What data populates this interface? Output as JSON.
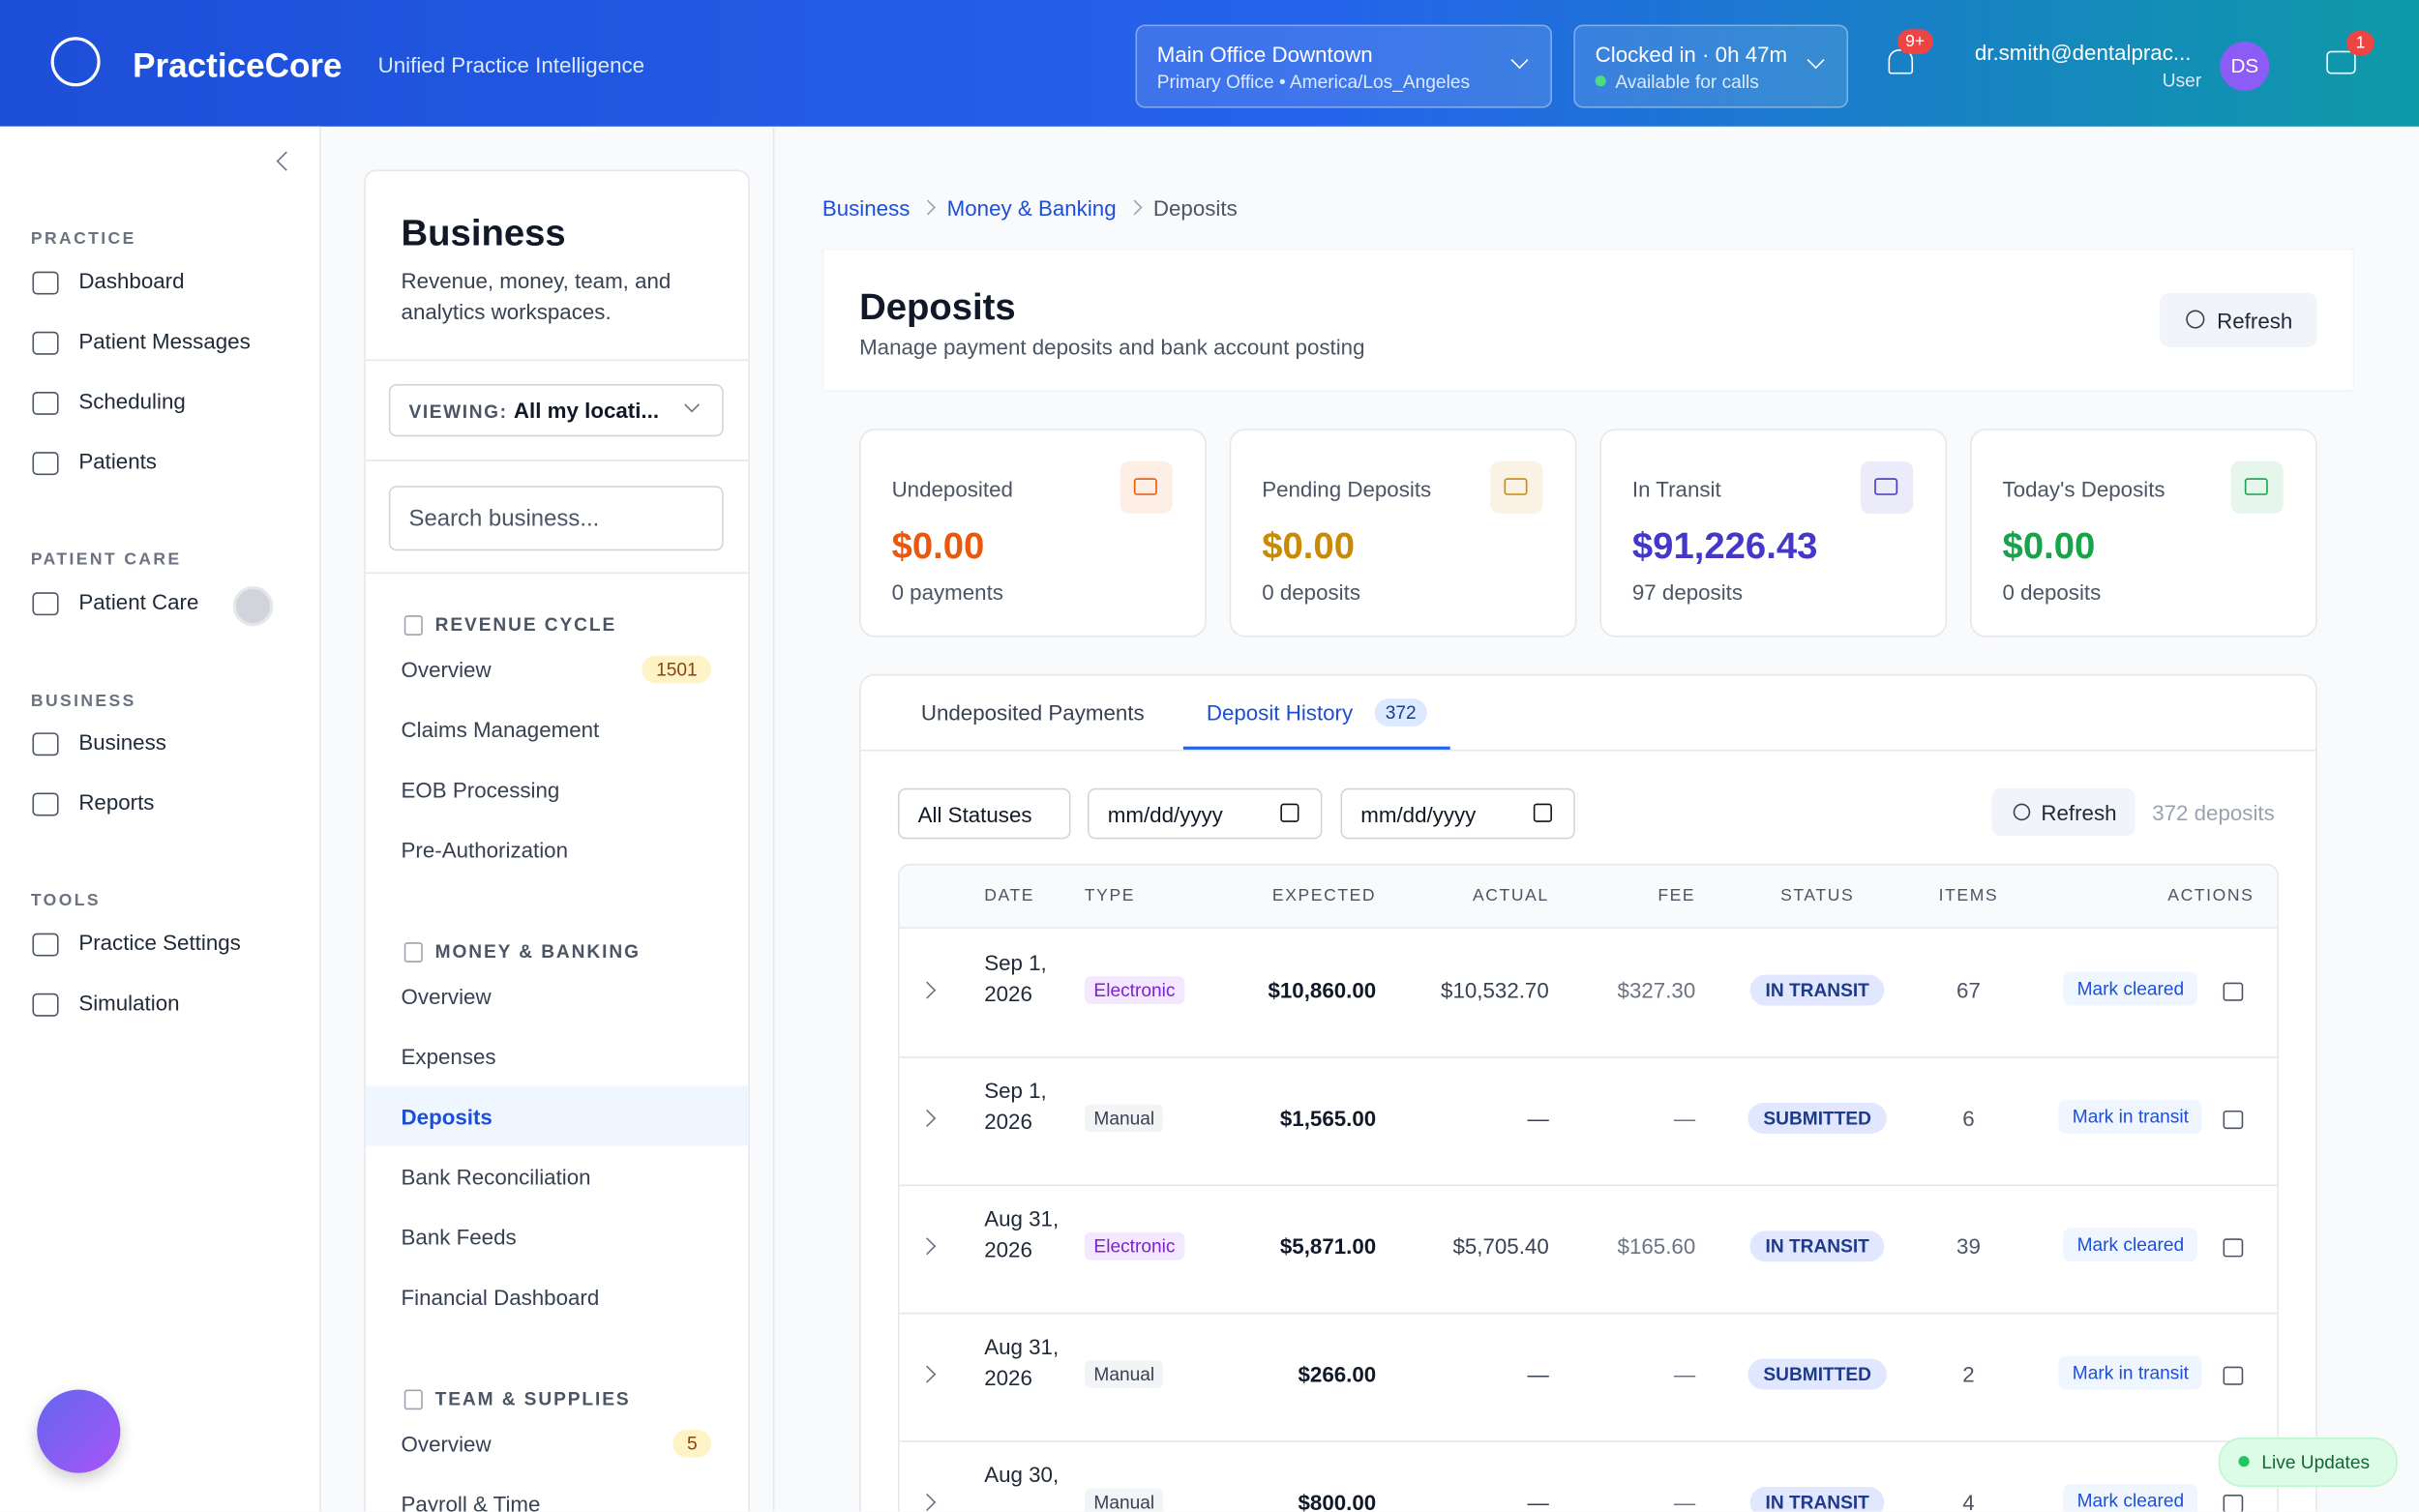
{
  "header": {
    "brand": "PracticeCore",
    "tagline": "Unified Practice Intelligence",
    "location": {
      "name": "Main Office Downtown",
      "detail": "Primary Office • America/Los_Angeles"
    },
    "clock": {
      "status": "Clocked in · 0h 47m",
      "detail": "Available for calls"
    },
    "notifications": "9+",
    "user": {
      "email": "dr.smith@dentalprac...",
      "role": "User",
      "initials": "DS"
    },
    "messages": "1"
  },
  "sidebar": {
    "sections": [
      {
        "title": "PRACTICE",
        "items": [
          "Dashboard",
          "Patient Messages",
          "Scheduling",
          "Patients"
        ]
      },
      {
        "title": "PATIENT CARE",
        "items": [
          "Patient Care"
        ]
      },
      {
        "title": "BUSINESS",
        "items": [
          "Business",
          "Reports"
        ]
      },
      {
        "title": "TOOLS",
        "items": [
          "Practice Settings",
          "Simulation"
        ]
      }
    ]
  },
  "subnav": {
    "title": "Business",
    "description": "Revenue, money, team, and analytics workspaces.",
    "viewing_label": "VIEWING:",
    "viewing_value": "All my locati...",
    "search_placeholder": "Search business...",
    "groups": [
      {
        "title": "REVENUE CYCLE",
        "items": [
          {
            "label": "Overview",
            "badge": "1501"
          },
          {
            "label": "Claims Management"
          },
          {
            "label": "EOB Processing"
          },
          {
            "label": "Pre-Authorization"
          }
        ]
      },
      {
        "title": "MONEY & BANKING",
        "items": [
          {
            "label": "Overview"
          },
          {
            "label": "Expenses"
          },
          {
            "label": "Deposits"
          },
          {
            "label": "Bank Reconciliation"
          },
          {
            "label": "Bank Feeds"
          },
          {
            "label": "Financial Dashboard"
          }
        ]
      },
      {
        "title": "TEAM & SUPPLIES",
        "items": [
          {
            "label": "Overview",
            "badge": "5"
          },
          {
            "label": "Payroll & Time"
          }
        ]
      }
    ]
  },
  "breadcrumb": [
    "Business",
    "Money & Banking",
    "Deposits"
  ],
  "page": {
    "title": "Deposits",
    "subtitle": "Manage payment deposits and bank account posting",
    "refresh": "Refresh"
  },
  "stats": [
    {
      "label": "Undeposited",
      "value": "$0.00",
      "sub": "0 payments",
      "color": "#ea580c"
    },
    {
      "label": "Pending Deposits",
      "value": "$0.00",
      "sub": "0 deposits",
      "color": "#ca8a04"
    },
    {
      "label": "In Transit",
      "value": "$91,226.43",
      "sub": "97 deposits",
      "color": "#4338ca"
    },
    {
      "label": "Today's Deposits",
      "value": "$0.00",
      "sub": "0 deposits",
      "color": "#16a34a"
    }
  ],
  "tabs": [
    {
      "label": "Undeposited Payments"
    },
    {
      "label": "Deposit History",
      "count": "372"
    }
  ],
  "filters": {
    "status": "All Statuses",
    "date_from": "mm/dd/yyyy",
    "date_to": "mm/dd/yyyy",
    "refresh": "Refresh",
    "count": "372 deposits"
  },
  "table": {
    "columns": [
      "DATE",
      "TYPE",
      "EXPECTED",
      "ACTUAL",
      "FEE",
      "STATUS",
      "ITEMS",
      "ACTIONS"
    ],
    "rows": [
      [
        "Sep 1, 2026",
        "Electronic",
        "$10,860.00",
        "$10,532.70",
        "$327.30",
        "IN TRANSIT",
        67,
        "Mark cleared"
      ],
      [
        "Sep 1, 2026",
        "Manual",
        "$1,565.00",
        "—",
        "—",
        "SUBMITTED",
        6,
        "Mark in transit"
      ],
      [
        "Aug 31, 2026",
        "Electronic",
        "$5,871.00",
        "$5,705.40",
        "$165.60",
        "IN TRANSIT",
        39,
        "Mark cleared"
      ],
      [
        "Aug 31, 2026",
        "Manual",
        "$266.00",
        "—",
        "—",
        "SUBMITTED",
        2,
        "Mark in transit"
      ],
      [
        "Aug 30,",
        "Manual",
        "$800.00",
        "—",
        "—",
        "IN TRANSIT",
        4,
        "Mark cleared"
      ]
    ]
  },
  "live": "Live Updates"
}
